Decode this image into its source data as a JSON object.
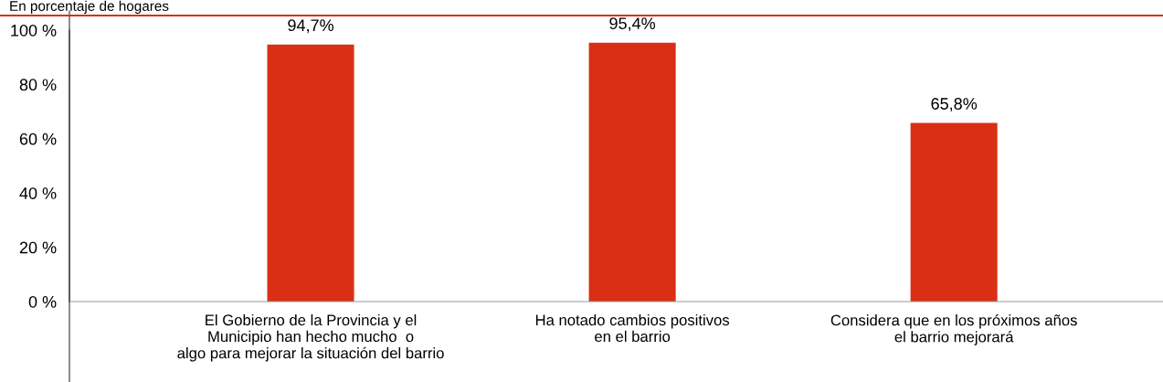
{
  "chart_data": {
    "type": "bar",
    "subtitle": "En porcentaje de hogares",
    "categories": [
      "El Gobierno de la Provincia y el\nMunicipio han hecho mucho  o\nalgo para mejorar la situación del barrio",
      "Ha notado cambios positivos\nen el barrio",
      "Considera que en los próximos años\nel barrio mejorará"
    ],
    "values": [
      94.7,
      95.4,
      65.8
    ],
    "value_labels": [
      "94,7%",
      "95,4%",
      "65,8%"
    ],
    "color": "#d93015",
    "ylim": [
      0,
      100
    ],
    "yticks": [
      {
        "value": 0,
        "label": "0 %"
      },
      {
        "value": 20,
        "label": "20 %"
      },
      {
        "value": 40,
        "label": "40 %"
      },
      {
        "value": 60,
        "label": "60 %"
      },
      {
        "value": 80,
        "label": "80 %"
      },
      {
        "value": 100,
        "label": "100 %"
      }
    ],
    "grid": false
  }
}
